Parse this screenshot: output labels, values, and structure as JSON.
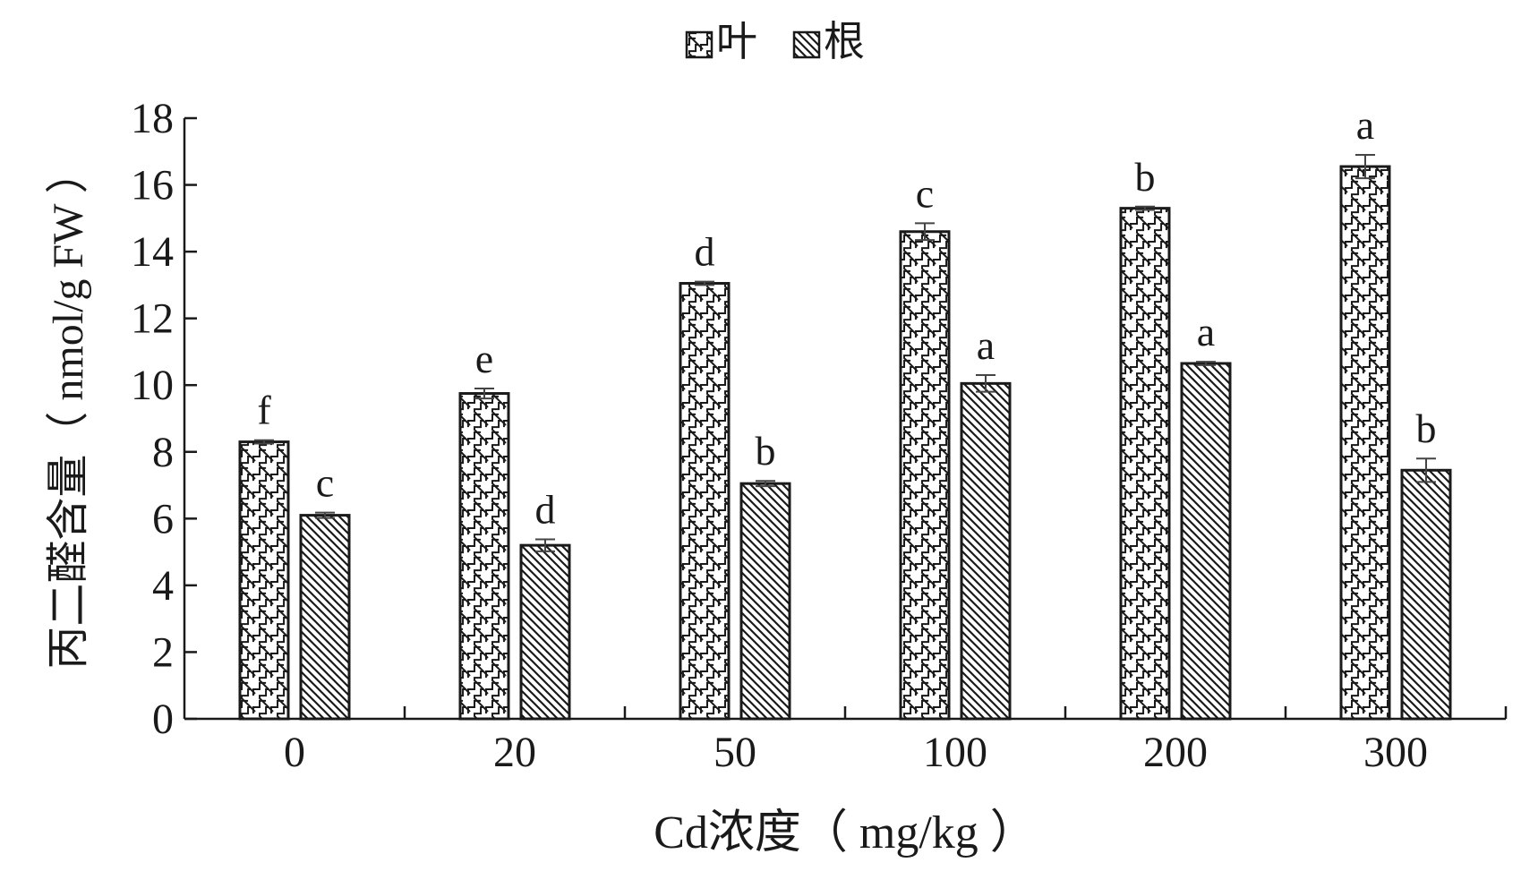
{
  "chart_data": {
    "type": "bar",
    "categories": [
      "0",
      "20",
      "50",
      "100",
      "200",
      "300"
    ],
    "series": [
      {
        "name": "叶",
        "values": [
          8.3,
          9.75,
          13.05,
          14.6,
          15.3,
          16.55
        ],
        "errors": [
          0.05,
          0.15,
          0.05,
          0.25,
          0.05,
          0.35
        ],
        "letters": [
          "f",
          "e",
          "d",
          "c",
          "b",
          "a"
        ],
        "pattern": "zigzag"
      },
      {
        "name": "根",
        "values": [
          6.1,
          5.2,
          7.05,
          10.05,
          10.65,
          7.45
        ],
        "errors": [
          0.08,
          0.18,
          0.08,
          0.25,
          0.05,
          0.35
        ],
        "letters": [
          "c",
          "d",
          "b",
          "a",
          "a",
          "b"
        ],
        "pattern": "diagonal"
      }
    ],
    "yticks": [
      "0",
      "2",
      "4",
      "6",
      "8",
      "10",
      "12",
      "14",
      "16",
      "18"
    ],
    "ylim": [
      0,
      18
    ],
    "xlabel": "Cd浓度（ mg/kg ）",
    "ylabel": "丙二醛含量（ nmol/g FW ）",
    "grid": false,
    "legend_position": "top-center",
    "colors": {
      "stroke": "#1a1a1a",
      "fill": "#ffffff"
    }
  }
}
